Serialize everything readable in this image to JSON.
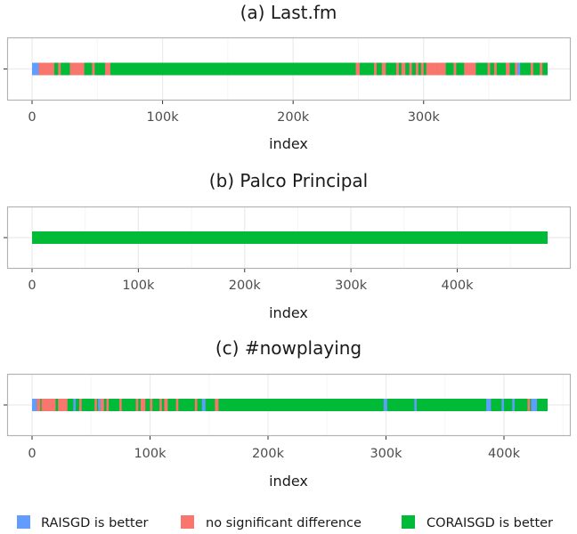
{
  "chart_data": [
    {
      "type": "strip",
      "title": "(a) Last.fm",
      "xlabel": "index",
      "xlim": [
        0,
        400000
      ],
      "data_end": 395000,
      "ticks": [
        0,
        100000,
        200000,
        300000
      ],
      "tick_labels": [
        "0",
        "100k",
        "200k",
        "300k"
      ],
      "default_category": "CORAISGD is better",
      "segments": [
        {
          "start": 0,
          "end": 5000,
          "category": "RAISGD is better"
        },
        {
          "start": 5000,
          "end": 17000,
          "category": "no significant difference"
        },
        {
          "start": 20000,
          "end": 22000,
          "category": "no significant difference"
        },
        {
          "start": 29000,
          "end": 31000,
          "category": "no significant difference"
        },
        {
          "start": 31000,
          "end": 40000,
          "category": "no significant difference"
        },
        {
          "start": 46000,
          "end": 48000,
          "category": "no significant difference"
        },
        {
          "start": 56000,
          "end": 60000,
          "category": "no significant difference"
        },
        {
          "start": 248000,
          "end": 251000,
          "category": "no significant difference"
        },
        {
          "start": 262000,
          "end": 264000,
          "category": "no significant difference"
        },
        {
          "start": 268000,
          "end": 271000,
          "category": "no significant difference"
        },
        {
          "start": 279000,
          "end": 281000,
          "category": "no significant difference"
        },
        {
          "start": 283000,
          "end": 286000,
          "category": "no significant difference"
        },
        {
          "start": 289000,
          "end": 291000,
          "category": "no significant difference"
        },
        {
          "start": 294000,
          "end": 296000,
          "category": "no significant difference"
        },
        {
          "start": 298000,
          "end": 300000,
          "category": "no significant difference"
        },
        {
          "start": 302000,
          "end": 311000,
          "category": "no significant difference"
        },
        {
          "start": 311000,
          "end": 317000,
          "category": "no significant difference"
        },
        {
          "start": 323000,
          "end": 325000,
          "category": "no significant difference"
        },
        {
          "start": 331000,
          "end": 340000,
          "category": "no significant difference"
        },
        {
          "start": 349000,
          "end": 351000,
          "category": "no significant difference"
        },
        {
          "start": 354000,
          "end": 356000,
          "category": "no significant difference"
        },
        {
          "start": 363000,
          "end": 366000,
          "category": "no significant difference"
        },
        {
          "start": 370000,
          "end": 372000,
          "category": "no significant difference"
        },
        {
          "start": 372000,
          "end": 374000,
          "category": "RAISGD is better"
        },
        {
          "start": 382000,
          "end": 384000,
          "category": "no significant difference"
        },
        {
          "start": 389000,
          "end": 391000,
          "category": "no significant difference"
        }
      ]
    },
    {
      "type": "strip",
      "title": "(b) Palco Principal",
      "xlabel": "index",
      "xlim": [
        0,
        500000
      ],
      "data_end": 485000,
      "ticks": [
        0,
        100000,
        200000,
        300000,
        400000
      ],
      "tick_labels": [
        "0",
        "100k",
        "200k",
        "300k",
        "400k"
      ],
      "default_category": "CORAISGD is better",
      "segments": []
    },
    {
      "type": "strip",
      "title": "(c) #nowplaying",
      "xlabel": "index",
      "xlim": [
        0,
        450000
      ],
      "data_end": 437000,
      "ticks": [
        0,
        100000,
        200000,
        300000,
        400000
      ],
      "tick_labels": [
        "0",
        "100k",
        "200k",
        "300k",
        "400k"
      ],
      "default_category": "CORAISGD is better",
      "segments": [
        {
          "start": 0,
          "end": 4000,
          "category": "RAISGD is better"
        },
        {
          "start": 4000,
          "end": 7000,
          "category": "no significant difference"
        },
        {
          "start": 8000,
          "end": 20000,
          "category": "no significant difference"
        },
        {
          "start": 22000,
          "end": 30000,
          "category": "no significant difference"
        },
        {
          "start": 35000,
          "end": 37000,
          "category": "RAISGD is better"
        },
        {
          "start": 40000,
          "end": 42000,
          "category": "no significant difference"
        },
        {
          "start": 53000,
          "end": 55000,
          "category": "no significant difference"
        },
        {
          "start": 56000,
          "end": 58000,
          "category": "RAISGD is better"
        },
        {
          "start": 58000,
          "end": 61000,
          "category": "no significant difference"
        },
        {
          "start": 63000,
          "end": 65000,
          "category": "no significant difference"
        },
        {
          "start": 74000,
          "end": 76000,
          "category": "no significant difference"
        },
        {
          "start": 88000,
          "end": 90000,
          "category": "no significant difference"
        },
        {
          "start": 92000,
          "end": 96000,
          "category": "no significant difference"
        },
        {
          "start": 100000,
          "end": 102000,
          "category": "no significant difference"
        },
        {
          "start": 108000,
          "end": 110000,
          "category": "no significant difference"
        },
        {
          "start": 112000,
          "end": 115000,
          "category": "no significant difference"
        },
        {
          "start": 122000,
          "end": 124000,
          "category": "no significant difference"
        },
        {
          "start": 138000,
          "end": 140000,
          "category": "no significant difference"
        },
        {
          "start": 144000,
          "end": 147000,
          "category": "RAISGD is better"
        },
        {
          "start": 155000,
          "end": 158000,
          "category": "no significant difference"
        },
        {
          "start": 298000,
          "end": 301000,
          "category": "RAISGD is better"
        },
        {
          "start": 324000,
          "end": 326000,
          "category": "RAISGD is better"
        },
        {
          "start": 385000,
          "end": 389000,
          "category": "RAISGD is better"
        },
        {
          "start": 398000,
          "end": 400000,
          "category": "RAISGD is better"
        },
        {
          "start": 407000,
          "end": 409000,
          "category": "RAISGD is better"
        },
        {
          "start": 420000,
          "end": 422000,
          "category": "no significant difference"
        },
        {
          "start": 423000,
          "end": 428000,
          "category": "RAISGD is better"
        }
      ]
    }
  ],
  "legend": {
    "placement": "bottom",
    "items": [
      {
        "label": "RAISGD is better",
        "color": "#619CFF"
      },
      {
        "label": "no significant difference",
        "color": "#F8766D"
      },
      {
        "label": "CORAISGD is better",
        "color": "#00BA38"
      }
    ]
  },
  "style": {
    "panel_background": "#ffffff",
    "panel_border": "#b3b3b3",
    "grid_major": "#ebebeb",
    "grid_minor": "#f5f5f5",
    "tick_color": "#333333"
  }
}
